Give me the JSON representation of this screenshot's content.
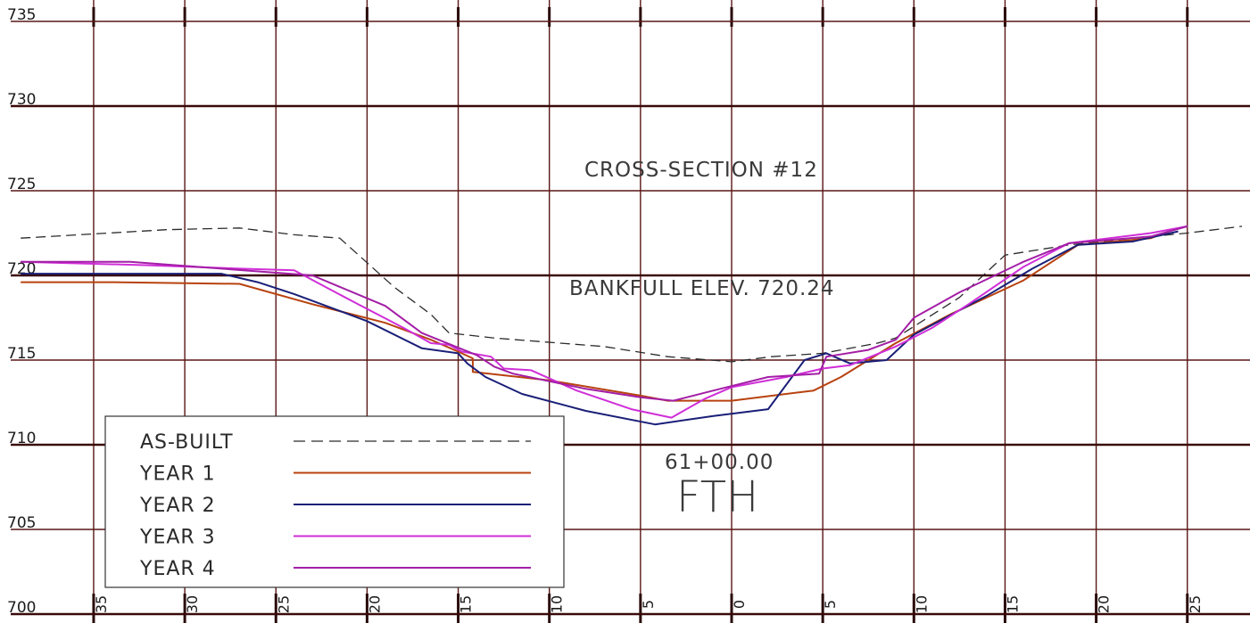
{
  "chart_data": {
    "type": "line",
    "title": "CROSS-SECTION #12",
    "annotations": {
      "bankfull": "BANKFULL ELEV. 720.24",
      "station": "61+00.00",
      "label": "FTH"
    },
    "xlabel": "",
    "ylabel": "",
    "xlim": [
      -35,
      28
    ],
    "ylim": [
      700,
      735
    ],
    "x_ticks": [
      -35,
      -30,
      -25,
      -20,
      -15,
      -10,
      -5,
      0,
      5,
      10,
      15,
      20,
      25
    ],
    "x_tick_labels": [
      "35",
      "30",
      "25",
      "20",
      "15",
      "10",
      "5",
      "0",
      "5",
      "10",
      "15",
      "20",
      "25"
    ],
    "y_ticks": [
      700,
      705,
      710,
      715,
      720,
      725,
      730,
      735
    ],
    "grid": true,
    "legend_position": "bottom-left",
    "series": [
      {
        "name": "AS-BUILT",
        "color": "#2a2a2a",
        "dash": "dashed",
        "points": [
          [
            -39,
            722.2
          ],
          [
            -31,
            722.7
          ],
          [
            -27,
            722.8
          ],
          [
            -24,
            722.4
          ],
          [
            -21.5,
            722.2
          ],
          [
            -18.5,
            719.3
          ],
          [
            -16.5,
            717.7
          ],
          [
            -15.5,
            716.6
          ],
          [
            -13,
            716.3
          ],
          [
            -7,
            715.8
          ],
          [
            -3.5,
            715.2
          ],
          [
            0,
            714.9
          ],
          [
            2.2,
            715.2
          ],
          [
            5,
            715.4
          ],
          [
            6,
            715.6
          ],
          [
            8,
            716.0
          ],
          [
            9,
            716.3
          ],
          [
            12.5,
            718.7
          ],
          [
            15,
            721.2
          ],
          [
            18.5,
            721.8
          ],
          [
            23,
            722.3
          ],
          [
            25,
            722.5
          ],
          [
            28,
            722.9
          ]
        ]
      },
      {
        "name": "YEAR 1",
        "color": "#b8420f",
        "dash": "solid",
        "points": [
          [
            -39,
            719.6
          ],
          [
            -34,
            719.6
          ],
          [
            -27,
            719.5
          ],
          [
            -23,
            718.3
          ],
          [
            -19,
            717.2
          ],
          [
            -16.5,
            716.2
          ],
          [
            -15,
            715.5
          ],
          [
            -14.2,
            715.1
          ],
          [
            -14.2,
            714.3
          ],
          [
            -10,
            713.8
          ],
          [
            -5,
            712.9
          ],
          [
            -3.5,
            712.6
          ],
          [
            0,
            712.6
          ],
          [
            4.5,
            713.2
          ],
          [
            6,
            714.0
          ],
          [
            9,
            716.0
          ],
          [
            12,
            717.7
          ],
          [
            16,
            719.7
          ],
          [
            19,
            721.8
          ],
          [
            23,
            722.2
          ],
          [
            24.5,
            722.8
          ]
        ]
      },
      {
        "name": "YEAR 2",
        "color": "#1a1f78",
        "dash": "solid",
        "points": [
          [
            -39,
            720.1
          ],
          [
            -34,
            720.1
          ],
          [
            -28,
            720.1
          ],
          [
            -26,
            719.6
          ],
          [
            -24,
            718.9
          ],
          [
            -20,
            717.3
          ],
          [
            -17,
            715.7
          ],
          [
            -15,
            715.4
          ],
          [
            -14.5,
            714.8
          ],
          [
            -13.5,
            714.0
          ],
          [
            -11.5,
            713.0
          ],
          [
            -8,
            712.0
          ],
          [
            -4.2,
            711.2
          ],
          [
            -1,
            711.7
          ],
          [
            2,
            712.1
          ],
          [
            4,
            715.0
          ],
          [
            5.2,
            715.4
          ],
          [
            6.5,
            714.8
          ],
          [
            8.5,
            715.0
          ],
          [
            10,
            716.5
          ],
          [
            14,
            718.8
          ],
          [
            16.5,
            720.4
          ],
          [
            19,
            721.8
          ],
          [
            22,
            722.0
          ],
          [
            24.5,
            722.6
          ]
        ]
      },
      {
        "name": "YEAR 3",
        "color": "#d02ed8",
        "dash": "solid",
        "points": [
          [
            -39,
            720.8
          ],
          [
            -32,
            720.6
          ],
          [
            -27,
            720.4
          ],
          [
            -24,
            720.3
          ],
          [
            -20.5,
            718.3
          ],
          [
            -18,
            716.9
          ],
          [
            -16.5,
            716.0
          ],
          [
            -15.5,
            715.9
          ],
          [
            -14.8,
            715.5
          ],
          [
            -13.2,
            715.2
          ],
          [
            -12.5,
            714.5
          ],
          [
            -11,
            714.4
          ],
          [
            -8.5,
            713.2
          ],
          [
            -5.5,
            712.1
          ],
          [
            -3.3,
            711.6
          ],
          [
            -1.5,
            712.7
          ],
          [
            0,
            713.4
          ],
          [
            3,
            714.0
          ],
          [
            5,
            714.5
          ],
          [
            6.5,
            714.7
          ],
          [
            9,
            715.8
          ],
          [
            11,
            716.9
          ],
          [
            13,
            718.3
          ],
          [
            16,
            720.5
          ],
          [
            18.5,
            721.9
          ],
          [
            23,
            722.5
          ],
          [
            25,
            722.9
          ]
        ]
      },
      {
        "name": "YEAR 4",
        "color": "#a31ea6",
        "dash": "solid",
        "points": [
          [
            -39,
            720.8
          ],
          [
            -33,
            720.8
          ],
          [
            -28,
            720.4
          ],
          [
            -23,
            720.0
          ],
          [
            -19,
            718.2
          ],
          [
            -17,
            716.6
          ],
          [
            -14,
            715.3
          ],
          [
            -13,
            714.6
          ],
          [
            -12,
            714.2
          ],
          [
            -8,
            713.3
          ],
          [
            -5,
            712.8
          ],
          [
            -3.2,
            712.6
          ],
          [
            -1,
            713.2
          ],
          [
            2,
            714.0
          ],
          [
            4.8,
            714.2
          ],
          [
            5.2,
            715.2
          ],
          [
            7.5,
            715.6
          ],
          [
            9,
            716.2
          ],
          [
            10,
            717.5
          ],
          [
            12.5,
            719.0
          ],
          [
            16,
            720.8
          ],
          [
            18.5,
            721.9
          ],
          [
            23,
            722.3
          ],
          [
            25,
            722.9
          ]
        ]
      }
    ]
  }
}
